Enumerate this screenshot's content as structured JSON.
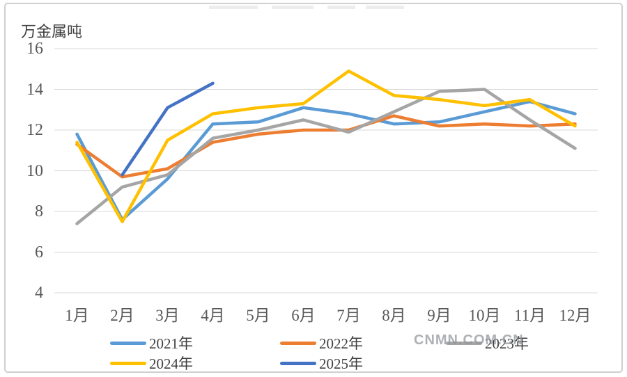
{
  "watermark": "CNMN.COM.CN",
  "chart_data": {
    "type": "line",
    "unit_label": "万金属吨",
    "categories": [
      "1月",
      "2月",
      "3月",
      "4月",
      "5月",
      "6月",
      "7月",
      "8月",
      "9月",
      "10月",
      "11月",
      "12月"
    ],
    "yticks": [
      16,
      14,
      12,
      10,
      8,
      6,
      4
    ],
    "ylim": [
      4,
      16
    ],
    "grid": "horizontal",
    "legend_position": "bottom",
    "series": [
      {
        "name": "2021年",
        "color": "#5B9BD5",
        "values": [
          11.8,
          7.6,
          9.6,
          12.3,
          12.4,
          13.1,
          12.8,
          12.3,
          12.4,
          12.9,
          13.4,
          12.8
        ]
      },
      {
        "name": "2022年",
        "color": "#ED7D31",
        "values": [
          11.3,
          9.7,
          10.1,
          11.4,
          11.8,
          12.0,
          12.0,
          12.7,
          12.2,
          12.3,
          12.2,
          12.3
        ]
      },
      {
        "name": "2023年",
        "color": "#A5A5A5",
        "values": [
          7.4,
          9.2,
          9.8,
          11.6,
          12.0,
          12.5,
          11.9,
          12.9,
          13.9,
          14.0,
          12.5,
          11.1
        ]
      },
      {
        "name": "2024年",
        "color": "#FFC000",
        "values": [
          11.4,
          7.5,
          11.5,
          12.8,
          13.1,
          13.3,
          14.9,
          13.7,
          13.5,
          13.2,
          13.5,
          12.2
        ]
      },
      {
        "name": "2025年",
        "color": "#4472C4",
        "values": [
          null,
          9.8,
          13.1,
          14.3,
          null,
          null,
          null,
          null,
          null,
          null,
          null,
          null
        ]
      }
    ]
  }
}
